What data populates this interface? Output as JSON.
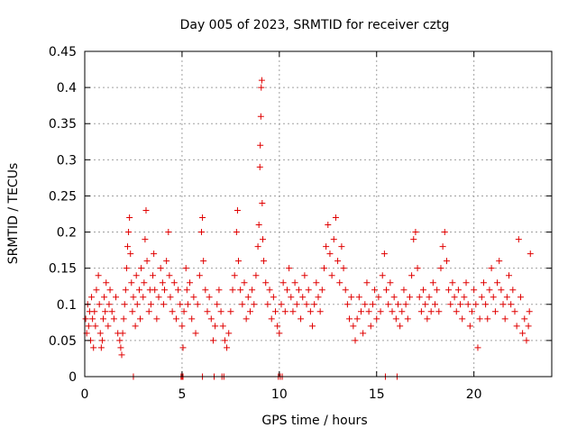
{
  "chart_data": {
    "type": "scatter",
    "title": "Day 005 of 2023, SRMTID for receiver cztg",
    "xlabel": "GPS time / hours",
    "ylabel": "SRMTID / TECUs",
    "xlim": [
      0,
      24.0
    ],
    "ylim": [
      0,
      0.45
    ],
    "xticks": [
      0,
      5,
      10,
      15,
      20
    ],
    "xtick_labels": [
      "0",
      "5",
      "10",
      "15",
      "20"
    ],
    "yticks": [
      0,
      0.05,
      0.1,
      0.15,
      0.2,
      0.25,
      0.3,
      0.35,
      0.4,
      0.45
    ],
    "ytick_labels": [
      "0",
      "0.05",
      "0.1",
      "0.15",
      "0.2",
      "0.25",
      "0.3",
      "0.35",
      "0.4",
      "0.45"
    ],
    "grid": true,
    "marker": "+",
    "color": "#e00000",
    "series": [
      {
        "name": "SRMTID",
        "points": [
          [
            0.05,
            0.08
          ],
          [
            0.1,
            0.06
          ],
          [
            0.15,
            0.1
          ],
          [
            0.2,
            0.07
          ],
          [
            0.25,
            0.09
          ],
          [
            0.3,
            0.05
          ],
          [
            0.35,
            0.11
          ],
          [
            0.4,
            0.08
          ],
          [
            0.45,
            0.04
          ],
          [
            0.5,
            0.09
          ],
          [
            0.55,
            0.07
          ],
          [
            0.6,
            0.12
          ],
          [
            0.7,
            0.14
          ],
          [
            0.75,
            0.1
          ],
          [
            0.8,
            0.06
          ],
          [
            0.85,
            0.04
          ],
          [
            0.9,
            0.05
          ],
          [
            0.95,
            0.08
          ],
          [
            1.0,
            0.11
          ],
          [
            1.05,
            0.09
          ],
          [
            1.1,
            0.13
          ],
          [
            1.2,
            0.07
          ],
          [
            1.25,
            0.1
          ],
          [
            1.3,
            0.12
          ],
          [
            1.4,
            0.09
          ],
          [
            1.5,
            0.08
          ],
          [
            1.6,
            0.11
          ],
          [
            1.7,
            0.06
          ],
          [
            1.8,
            0.05
          ],
          [
            1.85,
            0.04
          ],
          [
            1.9,
            0.03
          ],
          [
            1.95,
            0.06
          ],
          [
            2.0,
            0.08
          ],
          [
            2.05,
            0.1
          ],
          [
            2.1,
            0.12
          ],
          [
            2.15,
            0.15
          ],
          [
            2.2,
            0.18
          ],
          [
            2.25,
            0.2
          ],
          [
            2.3,
            0.22
          ],
          [
            2.35,
            0.17
          ],
          [
            2.4,
            0.13
          ],
          [
            2.45,
            0.09
          ],
          [
            2.5,
            0.11
          ],
          [
            2.6,
            0.07
          ],
          [
            2.65,
            0.14
          ],
          [
            2.7,
            0.1
          ],
          [
            2.8,
            0.12
          ],
          [
            2.85,
            0.08
          ],
          [
            2.9,
            0.15
          ],
          [
            3.0,
            0.11
          ],
          [
            3.05,
            0.13
          ],
          [
            3.1,
            0.19
          ],
          [
            3.15,
            0.23
          ],
          [
            3.2,
            0.16
          ],
          [
            3.3,
            0.09
          ],
          [
            3.35,
            0.12
          ],
          [
            3.4,
            0.1
          ],
          [
            3.5,
            0.14
          ],
          [
            3.55,
            0.17
          ],
          [
            3.6,
            0.12
          ],
          [
            3.7,
            0.08
          ],
          [
            3.8,
            0.11
          ],
          [
            3.9,
            0.15
          ],
          [
            4.0,
            0.13
          ],
          [
            4.05,
            0.1
          ],
          [
            4.1,
            0.12
          ],
          [
            4.2,
            0.16
          ],
          [
            4.3,
            0.2
          ],
          [
            4.35,
            0.14
          ],
          [
            4.4,
            0.11
          ],
          [
            4.5,
            0.09
          ],
          [
            4.6,
            0.13
          ],
          [
            4.7,
            0.08
          ],
          [
            4.8,
            0.12
          ],
          [
            4.9,
            0.1
          ],
          [
            5.0,
            0.07
          ],
          [
            5.05,
            0.04
          ],
          [
            5.1,
            0.09
          ],
          [
            5.2,
            0.15
          ],
          [
            5.25,
            0.12
          ],
          [
            5.3,
            0.1
          ],
          [
            5.4,
            0.13
          ],
          [
            5.5,
            0.08
          ],
          [
            5.6,
            0.11
          ],
          [
            5.7,
            0.06
          ],
          [
            5.8,
            0.1
          ],
          [
            5.9,
            0.14
          ],
          [
            6.0,
            0.2
          ],
          [
            6.05,
            0.22
          ],
          [
            6.1,
            0.16
          ],
          [
            6.2,
            0.12
          ],
          [
            6.3,
            0.09
          ],
          [
            6.4,
            0.11
          ],
          [
            6.5,
            0.08
          ],
          [
            6.6,
            0.05
          ],
          [
            6.7,
            0.07
          ],
          [
            6.8,
            0.1
          ],
          [
            6.9,
            0.12
          ],
          [
            7.0,
            0.09
          ],
          [
            7.1,
            0.07
          ],
          [
            7.2,
            0.05
          ],
          [
            7.3,
            0.04
          ],
          [
            7.4,
            0.06
          ],
          [
            7.5,
            0.09
          ],
          [
            7.6,
            0.12
          ],
          [
            7.7,
            0.14
          ],
          [
            7.8,
            0.2
          ],
          [
            7.85,
            0.23
          ],
          [
            7.9,
            0.16
          ],
          [
            8.0,
            0.12
          ],
          [
            8.1,
            0.1
          ],
          [
            8.2,
            0.13
          ],
          [
            8.3,
            0.08
          ],
          [
            8.4,
            0.11
          ],
          [
            8.5,
            0.09
          ],
          [
            8.6,
            0.12
          ],
          [
            8.7,
            0.1
          ],
          [
            8.8,
            0.14
          ],
          [
            8.9,
            0.18
          ],
          [
            8.95,
            0.21
          ],
          [
            9.0,
            0.29
          ],
          [
            9.02,
            0.32
          ],
          [
            9.05,
            0.36
          ],
          [
            9.07,
            0.4
          ],
          [
            9.1,
            0.41
          ],
          [
            9.12,
            0.24
          ],
          [
            9.15,
            0.19
          ],
          [
            9.2,
            0.16
          ],
          [
            9.3,
            0.13
          ],
          [
            9.4,
            0.1
          ],
          [
            9.5,
            0.12
          ],
          [
            9.6,
            0.08
          ],
          [
            9.7,
            0.11
          ],
          [
            9.8,
            0.09
          ],
          [
            9.9,
            0.07
          ],
          [
            10.0,
            0.06
          ],
          [
            10.1,
            0.1
          ],
          [
            10.2,
            0.13
          ],
          [
            10.3,
            0.09
          ],
          [
            10.4,
            0.12
          ],
          [
            10.5,
            0.15
          ],
          [
            10.6,
            0.11
          ],
          [
            10.7,
            0.09
          ],
          [
            10.8,
            0.13
          ],
          [
            10.9,
            0.1
          ],
          [
            11.0,
            0.12
          ],
          [
            11.1,
            0.08
          ],
          [
            11.2,
            0.11
          ],
          [
            11.3,
            0.14
          ],
          [
            11.4,
            0.1
          ],
          [
            11.5,
            0.12
          ],
          [
            11.6,
            0.09
          ],
          [
            11.7,
            0.07
          ],
          [
            11.8,
            0.1
          ],
          [
            11.9,
            0.13
          ],
          [
            12.0,
            0.11
          ],
          [
            12.1,
            0.09
          ],
          [
            12.2,
            0.12
          ],
          [
            12.3,
            0.15
          ],
          [
            12.4,
            0.18
          ],
          [
            12.5,
            0.21
          ],
          [
            12.6,
            0.17
          ],
          [
            12.7,
            0.14
          ],
          [
            12.8,
            0.19
          ],
          [
            12.9,
            0.22
          ],
          [
            13.0,
            0.16
          ],
          [
            13.1,
            0.13
          ],
          [
            13.2,
            0.18
          ],
          [
            13.3,
            0.15
          ],
          [
            13.4,
            0.12
          ],
          [
            13.5,
            0.1
          ],
          [
            13.6,
            0.08
          ],
          [
            13.7,
            0.11
          ],
          [
            13.8,
            0.07
          ],
          [
            13.9,
            0.05
          ],
          [
            14.0,
            0.08
          ],
          [
            14.1,
            0.11
          ],
          [
            14.2,
            0.09
          ],
          [
            14.3,
            0.06
          ],
          [
            14.4,
            0.1
          ],
          [
            14.5,
            0.13
          ],
          [
            14.6,
            0.09
          ],
          [
            14.7,
            0.07
          ],
          [
            14.8,
            0.1
          ],
          [
            14.9,
            0.12
          ],
          [
            15.0,
            0.08
          ],
          [
            15.1,
            0.11
          ],
          [
            15.2,
            0.09
          ],
          [
            15.3,
            0.14
          ],
          [
            15.4,
            0.17
          ],
          [
            15.5,
            0.12
          ],
          [
            15.6,
            0.1
          ],
          [
            15.7,
            0.13
          ],
          [
            15.8,
            0.09
          ],
          [
            15.9,
            0.11
          ],
          [
            16.0,
            0.08
          ],
          [
            16.1,
            0.1
          ],
          [
            16.2,
            0.07
          ],
          [
            16.3,
            0.09
          ],
          [
            16.4,
            0.12
          ],
          [
            16.5,
            0.1
          ],
          [
            16.6,
            0.08
          ],
          [
            16.7,
            0.11
          ],
          [
            16.8,
            0.14
          ],
          [
            16.9,
            0.19
          ],
          [
            17.0,
            0.2
          ],
          [
            17.1,
            0.15
          ],
          [
            17.2,
            0.11
          ],
          [
            17.3,
            0.09
          ],
          [
            17.4,
            0.12
          ],
          [
            17.5,
            0.1
          ],
          [
            17.6,
            0.08
          ],
          [
            17.7,
            0.11
          ],
          [
            17.8,
            0.09
          ],
          [
            17.9,
            0.13
          ],
          [
            18.0,
            0.1
          ],
          [
            18.1,
            0.12
          ],
          [
            18.2,
            0.09
          ],
          [
            18.3,
            0.15
          ],
          [
            18.4,
            0.18
          ],
          [
            18.5,
            0.2
          ],
          [
            18.6,
            0.16
          ],
          [
            18.7,
            0.12
          ],
          [
            18.8,
            0.1
          ],
          [
            18.9,
            0.13
          ],
          [
            19.0,
            0.11
          ],
          [
            19.1,
            0.09
          ],
          [
            19.2,
            0.12
          ],
          [
            19.3,
            0.1
          ],
          [
            19.4,
            0.08
          ],
          [
            19.5,
            0.11
          ],
          [
            19.6,
            0.13
          ],
          [
            19.7,
            0.1
          ],
          [
            19.8,
            0.07
          ],
          [
            19.9,
            0.09
          ],
          [
            20.0,
            0.12
          ],
          [
            20.1,
            0.1
          ],
          [
            20.2,
            0.04
          ],
          [
            20.3,
            0.08
          ],
          [
            20.4,
            0.11
          ],
          [
            20.5,
            0.13
          ],
          [
            20.6,
            0.1
          ],
          [
            20.7,
            0.08
          ],
          [
            20.8,
            0.12
          ],
          [
            20.9,
            0.15
          ],
          [
            21.0,
            0.11
          ],
          [
            21.1,
            0.09
          ],
          [
            21.2,
            0.13
          ],
          [
            21.3,
            0.16
          ],
          [
            21.4,
            0.12
          ],
          [
            21.5,
            0.1
          ],
          [
            21.6,
            0.08
          ],
          [
            21.7,
            0.11
          ],
          [
            21.8,
            0.14
          ],
          [
            21.9,
            0.1
          ],
          [
            22.0,
            0.12
          ],
          [
            22.1,
            0.09
          ],
          [
            22.2,
            0.07
          ],
          [
            22.3,
            0.19
          ],
          [
            22.4,
            0.11
          ],
          [
            22.5,
            0.06
          ],
          [
            22.6,
            0.08
          ],
          [
            22.7,
            0.05
          ],
          [
            22.8,
            0.07
          ],
          [
            22.85,
            0.09
          ],
          [
            22.9,
            0.17
          ],
          [
            2.5,
            0
          ],
          [
            4.95,
            0
          ],
          [
            5.0,
            0
          ],
          [
            5.05,
            0
          ],
          [
            6.05,
            0
          ],
          [
            6.65,
            0
          ],
          [
            7.05,
            0
          ],
          [
            7.15,
            0
          ],
          [
            9.95,
            0
          ],
          [
            10.05,
            0
          ],
          [
            10.15,
            0
          ],
          [
            15.45,
            0
          ],
          [
            16.05,
            0
          ]
        ]
      }
    ]
  }
}
